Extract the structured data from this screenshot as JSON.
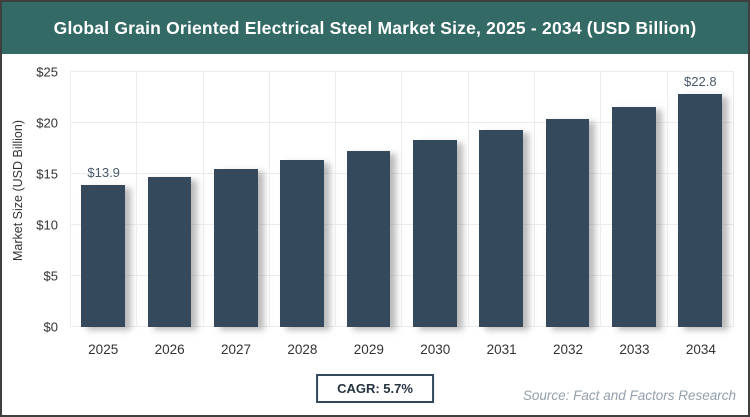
{
  "header": {
    "title": "Global Grain Oriented Electrical Steel Market Size, 2025 - 2034 (USD Billion)"
  },
  "chart_data": {
    "type": "bar",
    "title": "Global Grain Oriented Electrical Steel Market Size, 2025 - 2034 (USD Billion)",
    "categories": [
      "2025",
      "2026",
      "2027",
      "2028",
      "2029",
      "2030",
      "2031",
      "2032",
      "2033",
      "2034"
    ],
    "values": [
      13.9,
      14.7,
      15.5,
      16.4,
      17.3,
      18.3,
      19.3,
      20.4,
      21.6,
      22.8
    ],
    "xlabel": "",
    "ylabel": "Market Size (USD Billion)",
    "ylim": [
      0,
      25
    ],
    "yticks": [
      0,
      5,
      10,
      15,
      20,
      25
    ],
    "ytick_labels": [
      "$0",
      "$5",
      "$10",
      "$15",
      "$20",
      "$25"
    ],
    "annotations": [
      {
        "index": 0,
        "text": "$13.9"
      },
      {
        "index": 9,
        "text": "$22.8"
      }
    ],
    "grid": true,
    "legend_position": "none"
  },
  "footer": {
    "cagr": "CAGR: 5.7%",
    "source": "Source: Fact and Factors Research"
  },
  "colors": {
    "header_bg": "#336a65",
    "bar": "#34495c",
    "gridline": "#ececec",
    "value_label": "#47596b",
    "cagr_border": "#31485d",
    "source_text": "#93a0ac"
  }
}
